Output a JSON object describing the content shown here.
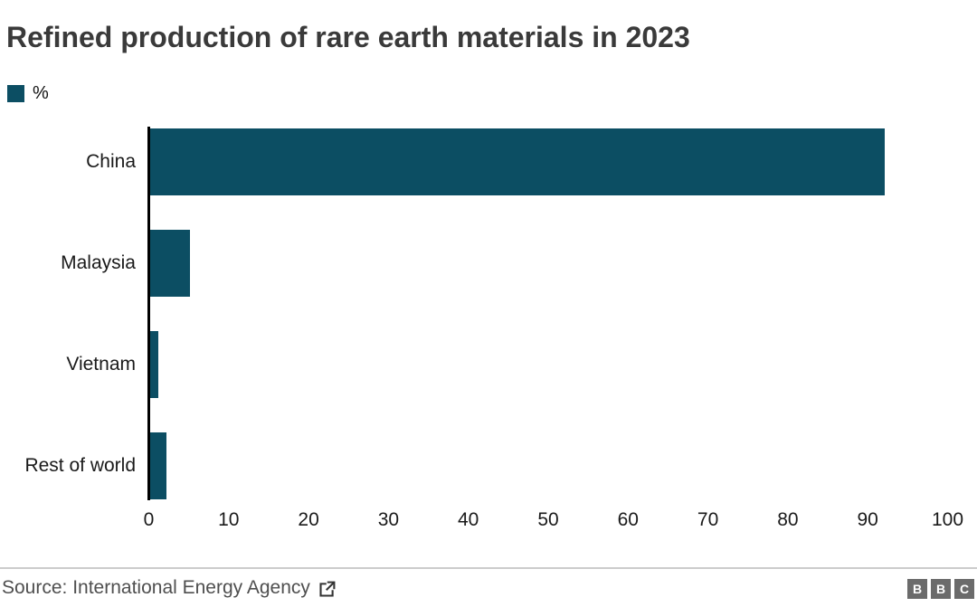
{
  "header": {
    "title": "Refined production of rare earth materials in 2023"
  },
  "legend": {
    "label": "%"
  },
  "chart_data": {
    "type": "bar",
    "orientation": "horizontal",
    "title": "Refined production of rare earth materials in 2023",
    "legend": "%",
    "unit": "%",
    "categories": [
      "China",
      "Malaysia",
      "Vietnam",
      "Rest of world"
    ],
    "values": [
      92,
      5,
      1,
      2
    ],
    "xlim": [
      0,
      100
    ],
    "xticks": [
      0,
      10,
      20,
      30,
      40,
      50,
      60,
      70,
      80,
      90,
      100
    ],
    "grid": false,
    "bar_color": "#0c4e63"
  },
  "footer": {
    "source_label": "Source: International Energy Agency",
    "external_link_icon": "open-in-new-window-icon",
    "logo_letters": [
      "B",
      "B",
      "C"
    ]
  },
  "colors": {
    "bar": "#0c4e63",
    "title": "#3a3a3a",
    "axis": "#000000",
    "tick": "#1a1a1a",
    "source": "#4f4f4f",
    "divider": "#cccccc",
    "logo_bg": "#6b6b6b"
  }
}
